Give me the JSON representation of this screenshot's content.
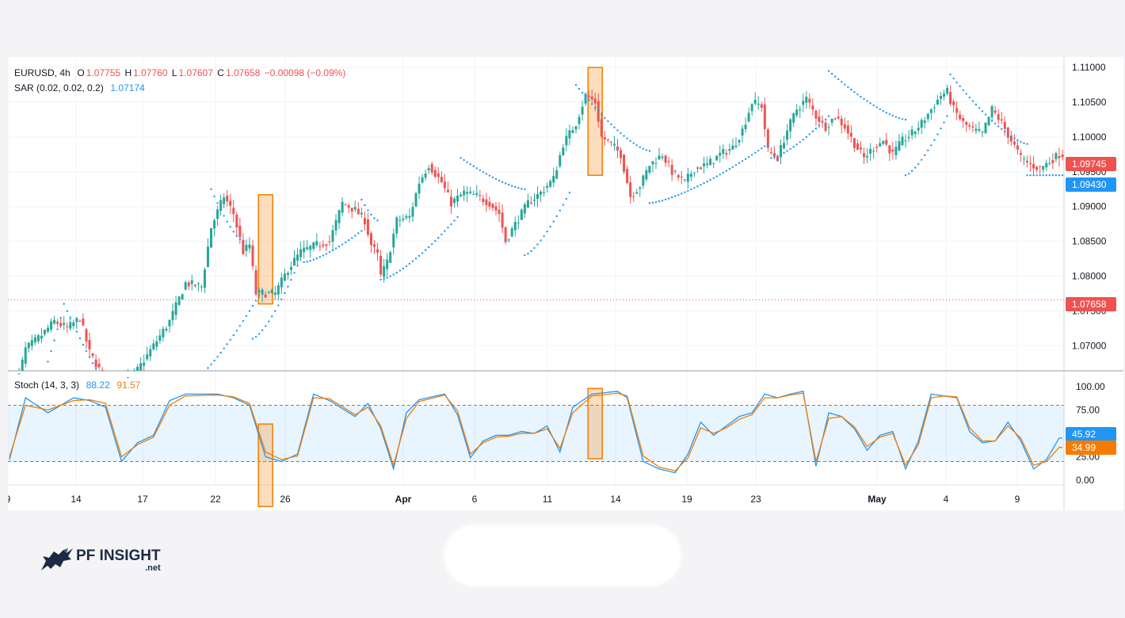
{
  "header": {
    "symbol": "EURUSD, 4h",
    "o_label": "O",
    "o_value": "1.07755",
    "h_label": "H",
    "h_value": "1.07760",
    "l_label": "L",
    "l_value": "1.07607",
    "c_label": "C",
    "c_value": "1.07658",
    "change": "−0.00098 (−0.09%)",
    "sar_label": "SAR (0.02, 0.02, 0.2)",
    "sar_value": "1.07174",
    "stoch_label": "Stoch (14, 3, 3)",
    "stoch_k": "88.22",
    "stoch_d": "91.57"
  },
  "colors": {
    "up": "#26a69a",
    "down": "#ef5350",
    "sar": "#2196f3",
    "stoch_k": "#2196f3",
    "stoch_d": "#f57c00",
    "highlight": "#f57c00"
  },
  "price_tags": [
    {
      "value": "1.09745",
      "color": "#ef5350"
    },
    {
      "value": "1.09430",
      "color": "#2196f3"
    },
    {
      "value": "1.07658",
      "color": "#ef5350"
    },
    {
      "value": "45.92",
      "color": "#2196f3"
    },
    {
      "value": "34.99",
      "color": "#f57c00"
    }
  ],
  "brand": {
    "name": "PF INSIGHT",
    "sub": ".net"
  },
  "chart_data": [
    {
      "type": "candlestick",
      "title": "EURUSD, 4h",
      "ylim": [
        1.0665,
        1.1115
      ],
      "y_ticks": [
        "1.11000",
        "1.10500",
        "1.10000",
        "1.09500",
        "1.09000",
        "1.08500",
        "1.08000",
        "1.07500",
        "1.07000"
      ],
      "x_tick_labels": [
        "9",
        "14",
        "17",
        "22",
        "26",
        "Apr",
        "6",
        "11",
        "14",
        "19",
        "23",
        "May",
        "4",
        "9"
      ],
      "last_price": 1.07658,
      "anchor_closes": [
        [
          0,
          1.06
        ],
        [
          5,
          1.0695
        ],
        [
          10,
          1.0715
        ],
        [
          14,
          1.0735
        ],
        [
          18,
          1.0725
        ],
        [
          22,
          1.074
        ],
        [
          25,
          1.069
        ],
        [
          30,
          1.065
        ],
        [
          35,
          1.064
        ],
        [
          40,
          1.0665
        ],
        [
          45,
          1.07
        ],
        [
          50,
          1.0735
        ],
        [
          55,
          1.079
        ],
        [
          60,
          1.0785
        ],
        [
          63,
          1.087
        ],
        [
          67,
          1.0915
        ],
        [
          70,
          1.089
        ],
        [
          73,
          1.0835
        ],
        [
          75,
          1.0845
        ],
        [
          77,
          1.0775
        ],
        [
          80,
          1.0775
        ],
        [
          83,
          1.0775
        ],
        [
          87,
          1.081
        ],
        [
          91,
          1.0835
        ],
        [
          96,
          1.0845
        ],
        [
          100,
          1.085
        ],
        [
          104,
          1.0905
        ],
        [
          108,
          1.0895
        ],
        [
          111,
          1.088
        ],
        [
          113,
          1.0845
        ],
        [
          115,
          1.083
        ],
        [
          116,
          1.08
        ],
        [
          118,
          1.082
        ],
        [
          121,
          1.088
        ],
        [
          125,
          1.0885
        ],
        [
          128,
          1.0935
        ],
        [
          131,
          1.096
        ],
        [
          135,
          1.0935
        ],
        [
          138,
          1.0905
        ],
        [
          142,
          1.092
        ],
        [
          146,
          1.0915
        ],
        [
          150,
          1.0905
        ],
        [
          153,
          1.089
        ],
        [
          155,
          1.085
        ],
        [
          158,
          1.0875
        ],
        [
          162,
          1.0905
        ],
        [
          166,
          1.092
        ],
        [
          170,
          1.094
        ],
        [
          173,
          1.099
        ],
        [
          177,
          1.102
        ],
        [
          180,
          1.106
        ],
        [
          183,
          1.105
        ],
        [
          185,
          1.1
        ],
        [
          188,
          1.099
        ],
        [
          191,
          1.0975
        ],
        [
          194,
          1.0915
        ],
        [
          197,
          1.093
        ],
        [
          200,
          1.096
        ],
        [
          204,
          1.0975
        ],
        [
          207,
          1.095
        ],
        [
          211,
          1.0935
        ],
        [
          214,
          1.0955
        ],
        [
          218,
          1.096
        ],
        [
          222,
          1.0975
        ],
        [
          226,
          1.0985
        ],
        [
          229,
          1.101
        ],
        [
          232,
          1.105
        ],
        [
          235,
          1.1045
        ],
        [
          237,
          1.098
        ],
        [
          240,
          1.097
        ],
        [
          243,
          1.101
        ],
        [
          246,
          1.104
        ],
        [
          249,
          1.1055
        ],
        [
          252,
          1.103
        ],
        [
          255,
          1.1015
        ],
        [
          258,
          1.103
        ],
        [
          261,
          1.1015
        ],
        [
          264,
          1.099
        ],
        [
          267,
          1.097
        ],
        [
          270,
          1.0985
        ],
        [
          273,
          1.0995
        ],
        [
          276,
          1.0975
        ],
        [
          279,
          1.0995
        ],
        [
          282,
          1.1005
        ],
        [
          285,
          1.102
        ],
        [
          288,
          1.104
        ],
        [
          291,
          1.106
        ],
        [
          293,
          1.1065
        ],
        [
          295,
          1.104
        ],
        [
          298,
          1.102
        ],
        [
          301,
          1.101
        ],
        [
          304,
          1.1005
        ],
        [
          307,
          1.104
        ],
        [
          310,
          1.102
        ],
        [
          313,
          1.0995
        ],
        [
          316,
          1.097
        ],
        [
          319,
          1.096
        ],
        [
          322,
          1.0955
        ],
        [
          325,
          1.0965
        ],
        [
          328,
          1.0975
        ]
      ],
      "sar_segments": [
        {
          "start": 0,
          "end": 16,
          "p0": 1.055,
          "p1": 1.074,
          "above": false
        },
        {
          "start": 17,
          "end": 40,
          "p0": 1.076,
          "p1": 1.059,
          "above": true
        },
        {
          "start": 41,
          "end": 52,
          "p0": 1.056,
          "p1": 1.066,
          "above": false
        },
        {
          "start": 53,
          "end": 79,
          "p0": 1.0635,
          "p1": 1.078,
          "above": false
        },
        {
          "start": 63,
          "end": 73,
          "p0": 1.0925,
          "p1": 1.085,
          "above": true
        },
        {
          "start": 76,
          "end": 90,
          "p0": 1.071,
          "p1": 1.0815,
          "above": false
        },
        {
          "start": 92,
          "end": 110,
          "p0": 1.082,
          "p1": 1.0865,
          "above": false
        },
        {
          "start": 110,
          "end": 115,
          "p0": 1.091,
          "p1": 1.088,
          "above": true
        },
        {
          "start": 116,
          "end": 140,
          "p0": 1.0795,
          "p1": 1.0885,
          "above": false
        },
        {
          "start": 141,
          "end": 161,
          "p0": 1.097,
          "p1": 1.0925,
          "above": true
        },
        {
          "start": 161,
          "end": 175,
          "p0": 1.083,
          "p1": 1.092,
          "above": false
        },
        {
          "start": 177,
          "end": 200,
          "p0": 1.1075,
          "p1": 1.098,
          "above": true
        },
        {
          "start": 200,
          "end": 237,
          "p0": 1.0905,
          "p1": 1.099,
          "above": false
        },
        {
          "start": 238,
          "end": 256,
          "p0": 1.097,
          "p1": 1.103,
          "above": false
        },
        {
          "start": 256,
          "end": 280,
          "p0": 1.1095,
          "p1": 1.1025,
          "above": true
        },
        {
          "start": 280,
          "end": 293,
          "p0": 1.0945,
          "p1": 1.103,
          "above": false
        },
        {
          "start": 294,
          "end": 318,
          "p0": 1.109,
          "p1": 1.099,
          "above": true
        },
        {
          "start": 318,
          "end": 329,
          "p0": 1.0945,
          "p1": 1.0945,
          "above": false
        }
      ],
      "highlights": [
        {
          "center_bar": 80,
          "top": 1.0917,
          "bottom": 1.076
        },
        {
          "center_bar": 183,
          "top": 1.11,
          "bottom": 1.0945
        }
      ]
    },
    {
      "type": "line",
      "title": "Stoch (14, 3, 3)",
      "ylim": [
        -5,
        105
      ],
      "y_ticks": [
        "100.00",
        "75.00",
        "25.00",
        "0.00"
      ],
      "band": [
        20,
        80
      ],
      "series": [
        {
          "name": "%K",
          "anchors": [
            [
              0,
              22
            ],
            [
              5,
              88
            ],
            [
              12,
              72
            ],
            [
              20,
              88
            ],
            [
              25,
              85
            ],
            [
              30,
              78
            ],
            [
              35,
              20
            ],
            [
              40,
              40
            ],
            [
              45,
              48
            ],
            [
              50,
              85
            ],
            [
              55,
              92
            ],
            [
              65,
              92
            ],
            [
              70,
              88
            ],
            [
              75,
              80
            ],
            [
              80,
              25
            ],
            [
              85,
              20
            ],
            [
              90,
              28
            ],
            [
              95,
              92
            ],
            [
              100,
              85
            ],
            [
              108,
              68
            ],
            [
              112,
              82
            ],
            [
              116,
              55
            ],
            [
              120,
              12
            ],
            [
              124,
              72
            ],
            [
              128,
              86
            ],
            [
              136,
              92
            ],
            [
              140,
              70
            ],
            [
              144,
              24
            ],
            [
              148,
              42
            ],
            [
              152,
              48
            ],
            [
              156,
              48
            ],
            [
              160,
              52
            ],
            [
              164,
              50
            ],
            [
              168,
              58
            ],
            [
              172,
              30
            ],
            [
              176,
              78
            ],
            [
              182,
              92
            ],
            [
              190,
              95
            ],
            [
              193,
              88
            ],
            [
              198,
              20
            ],
            [
              203,
              12
            ],
            [
              208,
              8
            ],
            [
              212,
              28
            ],
            [
              216,
              62
            ],
            [
              220,
              48
            ],
            [
              224,
              58
            ],
            [
              228,
              68
            ],
            [
              232,
              72
            ],
            [
              236,
              92
            ],
            [
              240,
              88
            ],
            [
              244,
              92
            ],
            [
              248,
              95
            ],
            [
              252,
              15
            ],
            [
              256,
              72
            ],
            [
              260,
              68
            ],
            [
              264,
              55
            ],
            [
              268,
              32
            ],
            [
              272,
              48
            ],
            [
              276,
              52
            ],
            [
              280,
              12
            ],
            [
              284,
              42
            ],
            [
              288,
              92
            ],
            [
              292,
              90
            ],
            [
              296,
              88
            ],
            [
              300,
              52
            ],
            [
              304,
              40
            ],
            [
              308,
              42
            ],
            [
              312,
              62
            ],
            [
              316,
              42
            ],
            [
              320,
              12
            ],
            [
              324,
              22
            ],
            [
              328,
              45
            ]
          ]
        },
        {
          "name": "%D",
          "anchors": [
            [
              0,
              25
            ],
            [
              5,
              80
            ],
            [
              12,
              75
            ],
            [
              20,
              85
            ],
            [
              25,
              86
            ],
            [
              30,
              82
            ],
            [
              35,
              25
            ],
            [
              40,
              38
            ],
            [
              45,
              46
            ],
            [
              50,
              80
            ],
            [
              55,
              90
            ],
            [
              65,
              91
            ],
            [
              70,
              89
            ],
            [
              75,
              82
            ],
            [
              80,
              30
            ],
            [
              85,
              22
            ],
            [
              90,
              26
            ],
            [
              95,
              88
            ],
            [
              100,
              87
            ],
            [
              108,
              70
            ],
            [
              112,
              78
            ],
            [
              116,
              58
            ],
            [
              120,
              16
            ],
            [
              124,
              66
            ],
            [
              128,
              84
            ],
            [
              136,
              91
            ],
            [
              140,
              74
            ],
            [
              144,
              28
            ],
            [
              148,
              40
            ],
            [
              152,
              46
            ],
            [
              156,
              47
            ],
            [
              160,
              50
            ],
            [
              164,
              50
            ],
            [
              168,
              55
            ],
            [
              172,
              34
            ],
            [
              176,
              72
            ],
            [
              182,
              90
            ],
            [
              190,
              93
            ],
            [
              193,
              90
            ],
            [
              198,
              26
            ],
            [
              203,
              14
            ],
            [
              208,
              10
            ],
            [
              212,
              24
            ],
            [
              216,
              56
            ],
            [
              220,
              50
            ],
            [
              224,
              56
            ],
            [
              228,
              65
            ],
            [
              232,
              70
            ],
            [
              236,
              88
            ],
            [
              240,
              88
            ],
            [
              244,
              91
            ],
            [
              248,
              93
            ],
            [
              252,
              20
            ],
            [
              256,
              66
            ],
            [
              260,
              68
            ],
            [
              264,
              57
            ],
            [
              268,
              36
            ],
            [
              272,
              46
            ],
            [
              276,
              50
            ],
            [
              280,
              16
            ],
            [
              284,
              38
            ],
            [
              288,
              88
            ],
            [
              292,
              90
            ],
            [
              296,
              89
            ],
            [
              300,
              56
            ],
            [
              304,
              42
            ],
            [
              308,
              42
            ],
            [
              312,
              58
            ],
            [
              316,
              45
            ],
            [
              320,
              16
            ],
            [
              324,
              20
            ],
            [
              328,
              35
            ]
          ]
        }
      ],
      "highlights": [
        {
          "center_bar": 80,
          "top": 60,
          "bottom": -28
        },
        {
          "center_bar": 183,
          "top": 98,
          "bottom": 23
        }
      ]
    }
  ]
}
